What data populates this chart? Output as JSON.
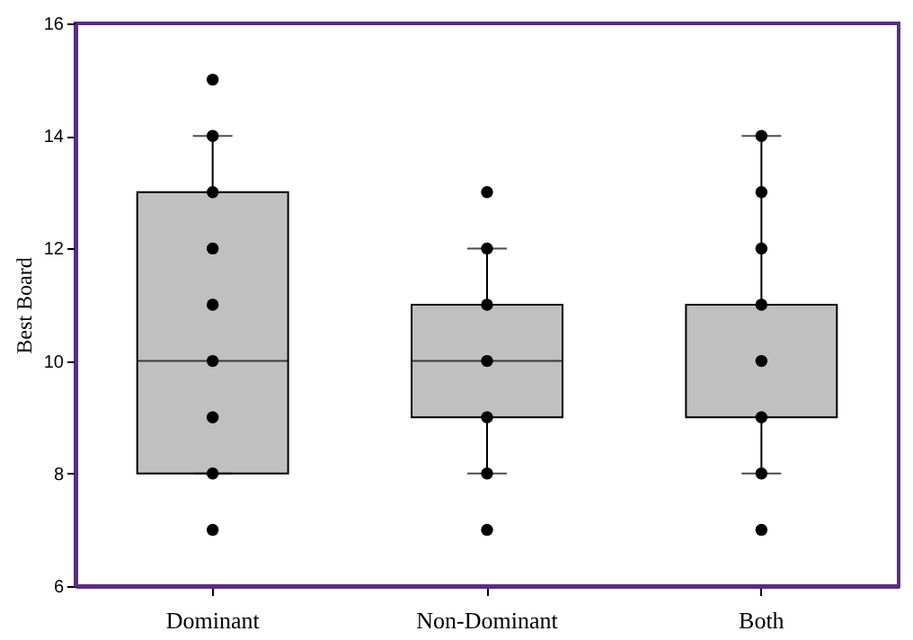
{
  "chart_data": {
    "type": "box",
    "ylabel": "Best Board",
    "categories": [
      "Dominant",
      "Non-Dominant",
      "Both"
    ],
    "boxes": [
      {
        "low": 8,
        "q1": 8,
        "median": 10,
        "q3": 13,
        "high": 14
      },
      {
        "low": 8,
        "q1": 9,
        "median": 10,
        "q3": 11,
        "high": 12
      },
      {
        "low": 8,
        "q1": 9,
        "median": 11,
        "q3": 11,
        "high": 14
      }
    ],
    "color": "#c0c0c0",
    "series": [
      {
        "type": "scatter",
        "color": "#000000",
        "x": [
          "Dominant",
          "Dominant",
          "Dominant",
          "Dominant",
          "Dominant",
          "Dominant",
          "Dominant",
          "Dominant",
          "Dominant",
          "Non-Dominant",
          "Non-Dominant",
          "Non-Dominant",
          "Non-Dominant",
          "Non-Dominant",
          "Non-Dominant",
          "Non-Dominant",
          "Both",
          "Both",
          "Both",
          "Both",
          "Both",
          "Both",
          "Both",
          "Both"
        ],
        "values": [
          15,
          14,
          13,
          12,
          11,
          10,
          9,
          8,
          7,
          13,
          12,
          11,
          10,
          9,
          8,
          7,
          14,
          13,
          12,
          11,
          10,
          9,
          8,
          7
        ]
      }
    ],
    "ylim": [
      6,
      16
    ],
    "yticks": [
      6,
      8,
      10,
      12,
      14,
      16
    ],
    "grid": false,
    "marker": "circle"
  }
}
